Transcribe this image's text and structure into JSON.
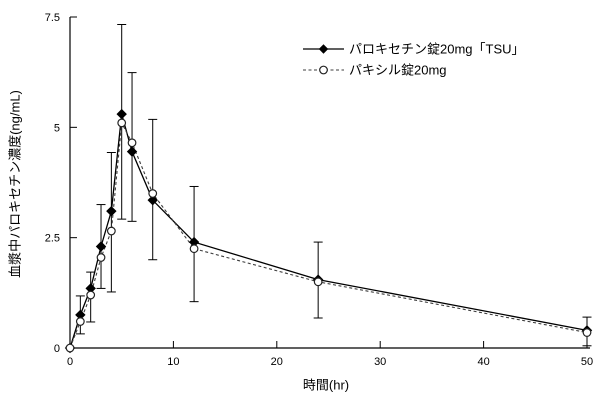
{
  "figure": {
    "xlabel": "時間(hr)",
    "ylabel": "血漿中パロキセチン濃度(ng/mL)"
  },
  "chart_data": {
    "type": "line",
    "title": "",
    "xlabel": "時間(hr)",
    "ylabel": "血漿中パロキセチン濃度(ng/mL)",
    "x_range": [
      0,
      50
    ],
    "y_range": [
      0,
      7.5
    ],
    "x_ticks": [
      0,
      10,
      20,
      30,
      40,
      50
    ],
    "y_ticks": [
      "0",
      "2.5",
      "5",
      "7.5"
    ],
    "grid": false,
    "legend_position": "inside-top-center",
    "x_hours": [
      0,
      1,
      2,
      3,
      4,
      5,
      6,
      8,
      12,
      24,
      50
    ],
    "series": [
      {
        "name": "パロキセチン錠20mg「TSU」",
        "marker": "filled-diamond",
        "line_style": "solid",
        "color": "#000000",
        "values": [
          0,
          0.75,
          1.35,
          2.3,
          3.1,
          5.3,
          4.45,
          3.35,
          2.4,
          1.55,
          0.4
        ]
      },
      {
        "name": "パキシル錠20mg",
        "marker": "open-circle",
        "line_style": "dashed",
        "color": "#3d3d3d",
        "values": [
          0,
          0.6,
          1.2,
          2.05,
          2.65,
          5.1,
          4.65,
          3.5,
          2.25,
          1.5,
          0.35
        ]
      }
    ],
    "error_bars": {
      "x_hours": [
        1,
        2,
        3,
        4,
        5,
        6,
        8,
        12,
        24,
        50
      ],
      "low": [
        0.32,
        0.59,
        1.35,
        1.27,
        2.92,
        2.87,
        2.0,
        1.05,
        0.68,
        0.05
      ],
      "high": [
        1.18,
        1.72,
        3.25,
        4.43,
        7.33,
        6.24,
        5.18,
        3.66,
        2.4,
        0.7
      ]
    },
    "colors": {
      "axis": "#000000",
      "background": "#ffffff",
      "series1_line": "#000000",
      "series2_line": "#3d3d3d",
      "marker_fill_open": "#ffffff"
    }
  }
}
